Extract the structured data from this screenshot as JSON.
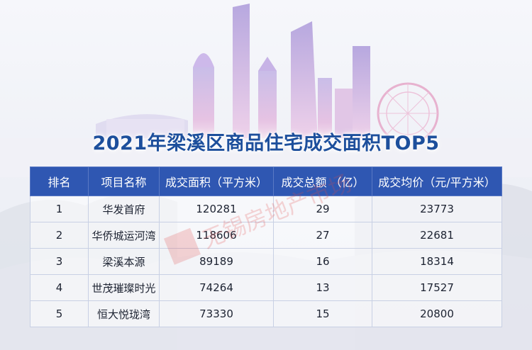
{
  "title": "2021年梁溪区商品住宅成交面积TOP5",
  "colors": {
    "header_bg": "#2f57b2",
    "title": "#1d4f9c"
  },
  "chart_data": {
    "type": "table",
    "columns": [
      "排名",
      "项目名称",
      "成交面积（平方米）",
      "成交总额 （亿）",
      "成交均价（元/平方米）"
    ],
    "rows": [
      [
        "1",
        "华发首府",
        "120281",
        "29",
        "23773"
      ],
      [
        "2",
        "华侨城运河湾",
        "118606",
        "27",
        "22681"
      ],
      [
        "3",
        "梁溪本源",
        "89189",
        "16",
        "18314"
      ],
      [
        "4",
        "世茂璀璨时光",
        "74264",
        "13",
        "17527"
      ],
      [
        "5",
        "恒大悦珑湾",
        "73330",
        "15",
        "20800"
      ]
    ]
  },
  "watermark_text": "无锡房地产市场"
}
